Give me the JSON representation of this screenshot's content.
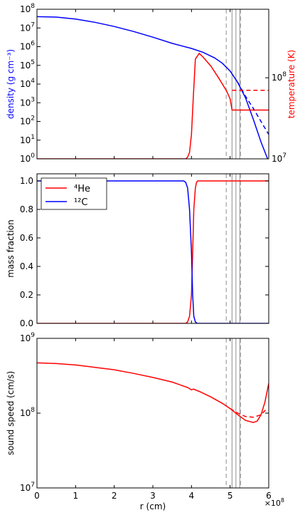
{
  "figure": {
    "exponent_label": "×10",
    "exponent_power": "8"
  },
  "colors": {
    "blue": "#0000ff",
    "red": "#ff0000",
    "grey": "#a0a0a0"
  },
  "chart_data": [
    {
      "type": "line",
      "xlim": [
        0,
        6
      ],
      "ylabel": "density (g cm⁻³)",
      "ylabel_color": "blue",
      "y_log": true,
      "ylim": [
        1,
        100000000
      ],
      "yticks": [
        {
          "v": 1,
          "e": "0"
        },
        {
          "v": 10,
          "e": "1"
        },
        {
          "v": 100,
          "e": "2"
        },
        {
          "v": 1000,
          "e": "3"
        },
        {
          "v": 10000,
          "e": "4"
        },
        {
          "v": 100000,
          "e": "5"
        },
        {
          "v": 1000000,
          "e": "6"
        },
        {
          "v": 10000000,
          "e": "7"
        },
        {
          "v": 100000000,
          "e": "8"
        }
      ],
      "y2label": "temperature (K)",
      "y2label_color": "red",
      "y2_log": true,
      "y2lim": [
        10000000,
        700000000
      ],
      "y2ticks": [
        {
          "v": 10000000,
          "e": "7"
        },
        {
          "v": 100000000,
          "e": "8"
        }
      ],
      "vlines": [
        {
          "x": 4.9,
          "style": "dashed"
        },
        {
          "x": 5.05,
          "style": "solid"
        },
        {
          "x": 5.15,
          "style": "solid"
        },
        {
          "x": 5.25,
          "style": "solid"
        },
        {
          "x": 5.27,
          "style": "dashed"
        }
      ],
      "series": [
        {
          "color": "blue",
          "dash": false,
          "axis": "left",
          "x": [
            0,
            0.5,
            1,
            1.5,
            2,
            2.5,
            3,
            3.5,
            4,
            4.3,
            4.6,
            4.8,
            5.0,
            5.2,
            5.4,
            5.6,
            5.8,
            5.97
          ],
          "y": [
            40000000,
            38000000,
            30000000,
            20000000,
            12000000,
            6500000,
            3200000,
            1500000,
            800000,
            500000,
            250000,
            130000,
            50000,
            12000,
            1800,
            130,
            8,
            1
          ]
        },
        {
          "color": "blue",
          "dash": true,
          "axis": "left",
          "x": [
            5.2,
            5.4,
            5.6,
            5.8,
            6.0
          ],
          "y": [
            12000,
            2200,
            500,
            100,
            20
          ]
        },
        {
          "color": "red",
          "dash": false,
          "axis": "right",
          "x": [
            0,
            3.85,
            3.9,
            3.95,
            4.0,
            4.05,
            4.1,
            4.2,
            4.3,
            4.5,
            4.7,
            4.9,
            5.0,
            5.05,
            6.0
          ],
          "y": [
            10000000,
            10000000,
            10500000,
            12000000,
            20000000,
            60000000,
            170000000,
            200000000,
            180000000,
            140000000,
            100000000,
            70000000,
            55000000,
            40000000,
            40000000
          ]
        },
        {
          "color": "red",
          "dash": true,
          "axis": "right",
          "x": [
            5.05,
            6.0
          ],
          "y": [
            70000000,
            70000000
          ]
        }
      ]
    },
    {
      "type": "line",
      "xlim": [
        0,
        6
      ],
      "ylabel": "mass fraction",
      "ylim": [
        0,
        1.05
      ],
      "yticks": [
        0.0,
        0.2,
        0.4,
        0.6,
        0.8,
        1.0
      ],
      "vlines": [
        {
          "x": 4.9,
          "style": "dashed"
        },
        {
          "x": 5.05,
          "style": "solid"
        },
        {
          "x": 5.15,
          "style": "solid"
        },
        {
          "x": 5.25,
          "style": "solid"
        },
        {
          "x": 5.27,
          "style": "dashed"
        }
      ],
      "legend": {
        "position": "upper-left",
        "entries": [
          {
            "label": "⁴He",
            "color": "red"
          },
          {
            "label": "¹²C",
            "color": "blue"
          }
        ]
      },
      "series": [
        {
          "name": "⁴He",
          "color": "red",
          "dash": false,
          "x": [
            0,
            3.85,
            3.9,
            3.95,
            4.0,
            4.03,
            4.06,
            4.1,
            4.13,
            4.16,
            4.2,
            6.0
          ],
          "y": [
            0,
            0,
            0.01,
            0.05,
            0.2,
            0.5,
            0.8,
            0.95,
            0.99,
            1.0,
            1.0,
            1.0
          ]
        },
        {
          "name": "¹²C",
          "color": "blue",
          "dash": false,
          "x": [
            0,
            3.8,
            3.85,
            3.9,
            3.95,
            4.0,
            4.03,
            4.06,
            4.1,
            4.15,
            4.2,
            6.0
          ],
          "y": [
            1,
            1,
            0.99,
            0.95,
            0.8,
            0.5,
            0.2,
            0.05,
            0.01,
            0,
            0,
            0
          ]
        }
      ]
    },
    {
      "type": "line",
      "xlim": [
        0,
        6
      ],
      "xlabel": "r (cm)",
      "xticks": [
        0,
        1,
        2,
        3,
        4,
        5,
        6
      ],
      "ylabel": "sound speed (cm/s)",
      "y_log": true,
      "ylim": [
        10000000,
        1000000000
      ],
      "yticks": [
        {
          "v": 10000000,
          "e": "7"
        },
        {
          "v": 100000000,
          "e": "8"
        },
        {
          "v": 1000000000,
          "e": "9"
        }
      ],
      "vlines": [
        {
          "x": 4.9,
          "style": "dashed"
        },
        {
          "x": 5.05,
          "style": "solid"
        },
        {
          "x": 5.15,
          "style": "solid"
        },
        {
          "x": 5.25,
          "style": "solid"
        },
        {
          "x": 5.27,
          "style": "dashed"
        }
      ],
      "series": [
        {
          "color": "red",
          "dash": false,
          "x": [
            0,
            0.5,
            1,
            1.5,
            2,
            2.5,
            3,
            3.5,
            3.9,
            4.0,
            4.05,
            4.2,
            4.5,
            4.8,
            5.0,
            5.2,
            5.4,
            5.6,
            5.7,
            5.8,
            5.9,
            6.0
          ],
          "y": [
            470000000,
            460000000,
            440000000,
            410000000,
            380000000,
            340000000,
            300000000,
            260000000,
            220000000,
            205000000,
            210000000,
            195000000,
            165000000,
            135000000,
            115000000,
            95000000,
            80000000,
            75000000,
            78000000,
            95000000,
            140000000,
            250000000
          ]
        },
        {
          "color": "red",
          "dash": true,
          "x": [
            5.0,
            5.2,
            5.4,
            5.6,
            5.8,
            5.95
          ],
          "y": [
            115000000,
            100000000,
            90000000,
            88000000,
            95000000,
            115000000
          ]
        }
      ]
    }
  ]
}
